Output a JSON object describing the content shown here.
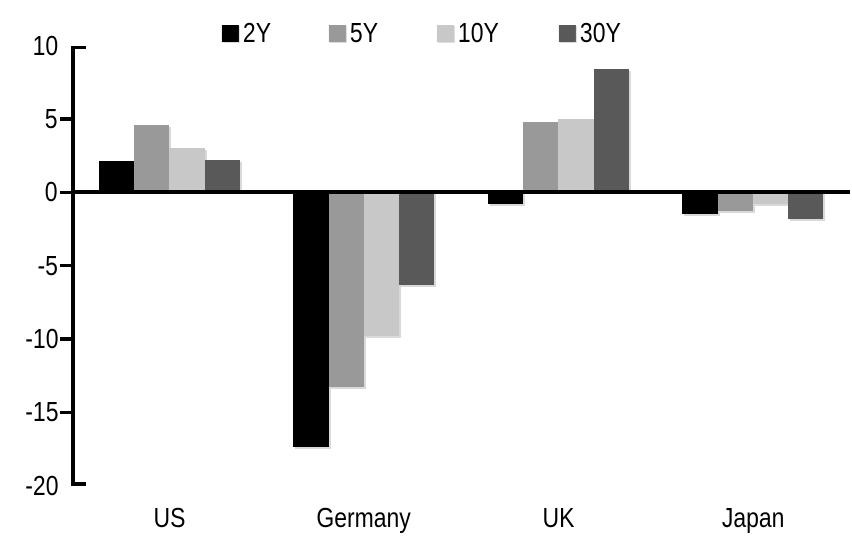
{
  "chart_data": {
    "type": "bar",
    "title": "",
    "categories": [
      "US",
      "Germany",
      "UK",
      "Japan"
    ],
    "series": [
      {
        "name": "2Y",
        "color": "#000000",
        "values": [
          2.1,
          -17.4,
          -0.8,
          -1.5
        ]
      },
      {
        "name": "5Y",
        "color": "#999999",
        "values": [
          4.6,
          -13.3,
          4.8,
          -1.3
        ]
      },
      {
        "name": "10Y",
        "color": "#c8c8c8",
        "values": [
          3.0,
          -9.8,
          5.0,
          -0.8
        ]
      },
      {
        "name": "30Y",
        "color": "#595959",
        "values": [
          2.2,
          -6.3,
          8.4,
          -1.8
        ]
      }
    ],
    "ylim": [
      -20,
      10
    ],
    "yticks": [
      10,
      5,
      0,
      -5,
      -10,
      -15,
      -20
    ],
    "legend_position": "top-center",
    "grid": false,
    "axis_color": "#000000",
    "background_color": "#ffffff"
  }
}
